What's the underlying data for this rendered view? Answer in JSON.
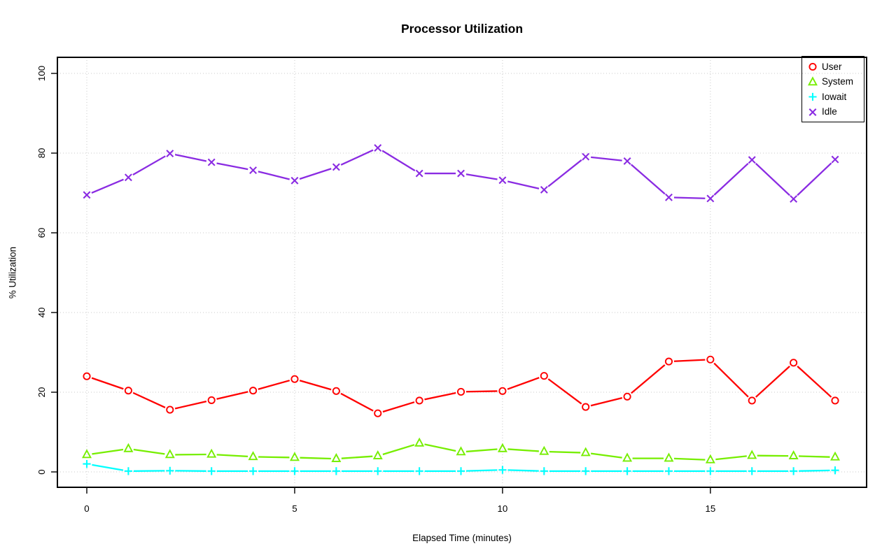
{
  "chart_data": {
    "type": "line",
    "title": "Processor Utilization",
    "xlabel": "Elapsed Time (minutes)",
    "ylabel": "% Utilization",
    "xlim": [
      0,
      18
    ],
    "ylim": [
      0,
      100
    ],
    "xticks": [
      0,
      5,
      10,
      15
    ],
    "yticks": [
      0,
      20,
      40,
      60,
      80,
      100
    ],
    "grid": "dotted-both-axes",
    "legend_position": "top-right",
    "background": "#ffffff",
    "x": [
      0,
      1,
      2,
      3,
      4,
      5,
      6,
      7,
      8,
      9,
      10,
      11,
      12,
      13,
      14,
      15,
      16,
      17,
      18
    ],
    "series": [
      {
        "name": "User",
        "color": "#ff0000",
        "marker": "circle",
        "values": [
          24.0,
          20.4,
          15.6,
          18.0,
          20.4,
          23.3,
          20.3,
          14.7,
          17.9,
          20.1,
          20.3,
          24.1,
          16.3,
          18.9,
          27.7,
          28.2,
          17.9,
          27.4,
          17.9
        ]
      },
      {
        "name": "System",
        "color": "#76ee00",
        "marker": "triangle",
        "values": [
          4.3,
          5.8,
          4.3,
          4.4,
          3.8,
          3.6,
          3.3,
          4.0,
          7.2,
          5.0,
          5.8,
          5.1,
          4.8,
          3.4,
          3.4,
          3.0,
          4.1,
          4.0,
          3.7
        ]
      },
      {
        "name": "Iowait",
        "color": "#00ffff",
        "marker": "plus",
        "values": [
          2.0,
          0.2,
          0.3,
          0.2,
          0.2,
          0.2,
          0.2,
          0.2,
          0.2,
          0.2,
          0.5,
          0.2,
          0.2,
          0.2,
          0.2,
          0.2,
          0.2,
          0.2,
          0.4
        ]
      },
      {
        "name": "Idle",
        "color": "#8a2be2",
        "marker": "x",
        "values": [
          69.5,
          73.9,
          79.9,
          77.7,
          75.7,
          73.1,
          76.5,
          81.3,
          74.9,
          74.9,
          73.2,
          70.8,
          79.1,
          78.0,
          68.9,
          68.6,
          78.3,
          68.5,
          78.4
        ]
      }
    ]
  }
}
